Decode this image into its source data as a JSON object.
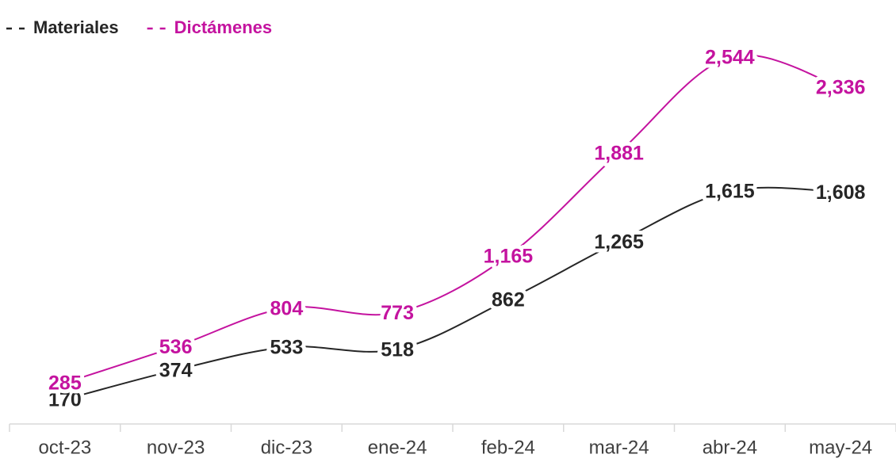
{
  "chart_data": {
    "type": "line",
    "categories": [
      "oct-23",
      "nov-23",
      "dic-23",
      "ene-24",
      "feb-24",
      "mar-24",
      "abr-24",
      "may-24"
    ],
    "series": [
      {
        "name": "Materiales",
        "color": "#262626",
        "values": [
          170,
          374,
          533,
          518,
          862,
          1265,
          1615,
          1608
        ],
        "value_labels": [
          "170",
          "374",
          "533",
          "518",
          "862",
          "1,265",
          "1,615",
          "1,608"
        ]
      },
      {
        "name": "Dictámenes",
        "color": "#c4139f",
        "values": [
          285,
          536,
          804,
          773,
          1165,
          1881,
          2544,
          2336
        ],
        "value_labels": [
          "285",
          "536",
          "804",
          "773",
          "1,165",
          "1,881",
          "2,544",
          "2,336"
        ]
      }
    ],
    "ylim": [
      0,
      3000
    ],
    "legend": "top-left"
  }
}
